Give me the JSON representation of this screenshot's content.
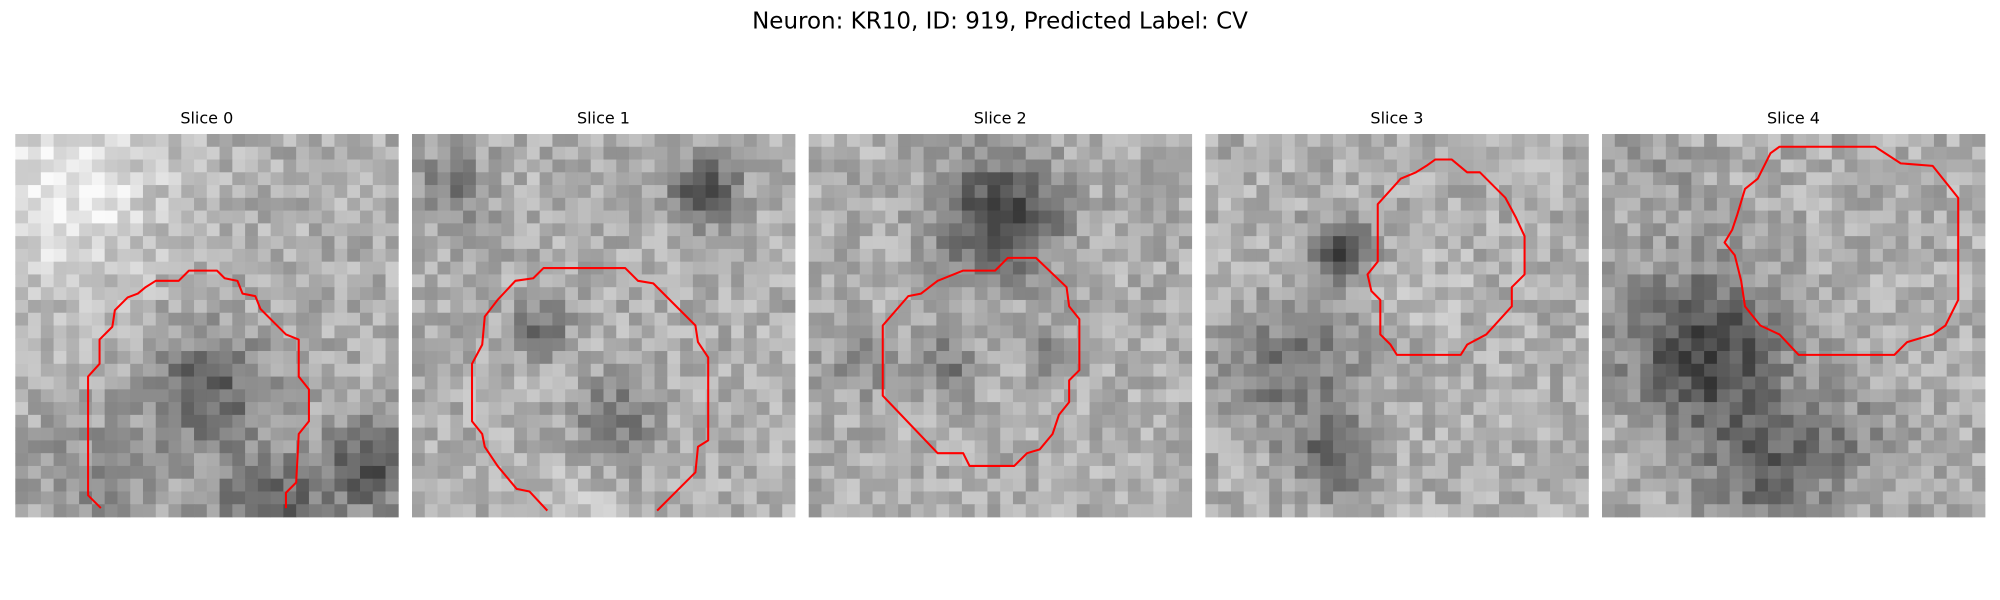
{
  "title": "Neuron: KR10, ID: 919, Predicted Label: CV",
  "panels": [
    {
      "title": "Slice 0"
    },
    {
      "title": "Slice 1"
    },
    {
      "title": "Slice 2"
    },
    {
      "title": "Slice 3"
    },
    {
      "title": "Slice 4"
    }
  ]
}
